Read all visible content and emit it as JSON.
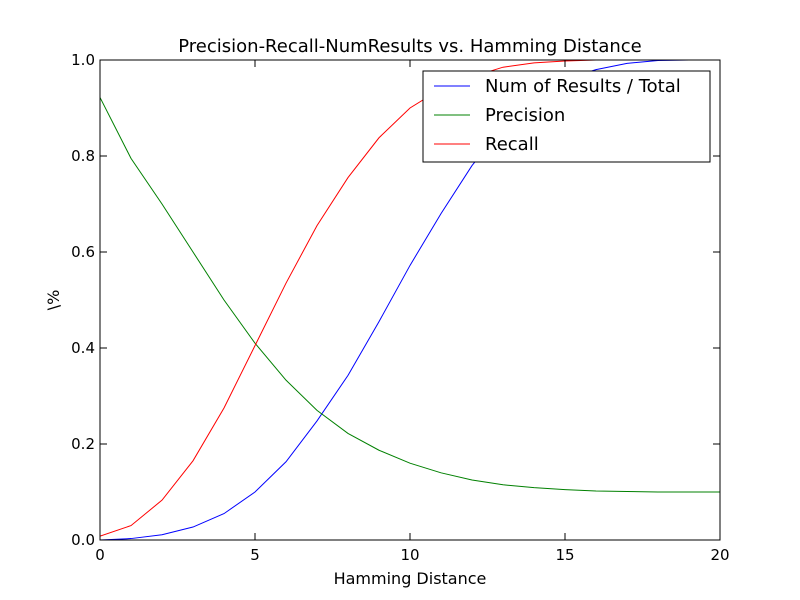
{
  "chart_data": {
    "type": "line",
    "title": "Precision-Recall-NumResults vs. Hamming Distance",
    "xlabel": "Hamming Distance",
    "ylabel": "\\%",
    "xlim": [
      0,
      20
    ],
    "ylim": [
      0,
      1
    ],
    "xticks": [
      0,
      5,
      10,
      15,
      20
    ],
    "xtick_labels": [
      "0",
      "5",
      "10",
      "15",
      "20"
    ],
    "yticks": [
      0,
      0.2,
      0.4,
      0.6,
      0.8,
      1.0
    ],
    "ytick_labels": [
      "0.0",
      "0.2",
      "0.4",
      "0.6",
      "0.8",
      "1.0"
    ],
    "grid": false,
    "legend_position": "top-right",
    "x": [
      0,
      1,
      2,
      3,
      4,
      5,
      6,
      7,
      8,
      9,
      10,
      11,
      12,
      13,
      14,
      15,
      16,
      17,
      18,
      19,
      20
    ],
    "series": [
      {
        "name": "Num of Results / Total",
        "color": "#0000ff",
        "values": [
          0.0,
          0.003,
          0.011,
          0.027,
          0.055,
          0.1,
          0.163,
          0.248,
          0.343,
          0.455,
          0.572,
          0.68,
          0.78,
          0.86,
          0.92,
          0.96,
          0.98,
          0.993,
          0.999,
          1.0,
          1.0
        ]
      },
      {
        "name": "Precision",
        "color": "#008000",
        "values": [
          0.922,
          0.795,
          0.7,
          0.6,
          0.5,
          0.41,
          0.333,
          0.27,
          0.222,
          0.187,
          0.16,
          0.14,
          0.125,
          0.115,
          0.109,
          0.105,
          0.102,
          0.101,
          0.1,
          0.1,
          0.1
        ]
      },
      {
        "name": "Recall",
        "color": "#ff0000",
        "values": [
          0.008,
          0.03,
          0.083,
          0.165,
          0.275,
          0.405,
          0.535,
          0.655,
          0.755,
          0.838,
          0.9,
          0.94,
          0.965,
          0.985,
          0.994,
          0.998,
          1.0,
          1.0,
          1.0,
          1.0,
          1.0
        ]
      }
    ]
  }
}
